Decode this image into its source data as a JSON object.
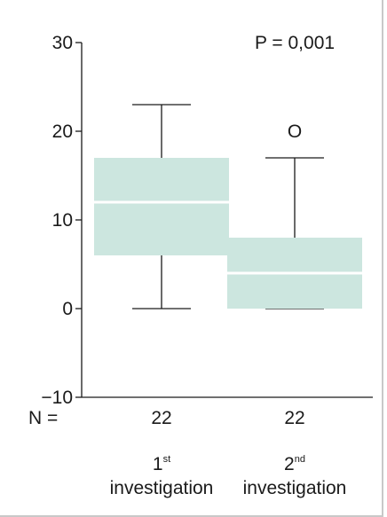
{
  "chart_data": {
    "type": "box",
    "ylim": [
      -10,
      30
    ],
    "yticks": [
      -10,
      0,
      10,
      20,
      30
    ],
    "ytick_labels": [
      "−10",
      "0",
      "10",
      "20",
      "30"
    ],
    "annotation": "P = 0,001",
    "n_label": "N =",
    "groups": [
      {
        "label_line1": "1",
        "label_sup": "st",
        "label_line2": "investigation",
        "n": "22",
        "whisker_low": 0,
        "q1": 6,
        "median": 12,
        "q3": 17,
        "whisker_high": 23,
        "outliers": []
      },
      {
        "label_line1": "2",
        "label_sup": "nd",
        "label_line2": "investigation",
        "n": "22",
        "whisker_low": 0,
        "q1": 0,
        "median": 4,
        "q3": 8,
        "whisker_high": 17,
        "outliers": [
          20
        ]
      }
    ],
    "colors": {
      "box_fill": "#cce6df",
      "median_line": "#ffffff",
      "axis": "#1a1a1a"
    },
    "outlier_marker": "O"
  }
}
